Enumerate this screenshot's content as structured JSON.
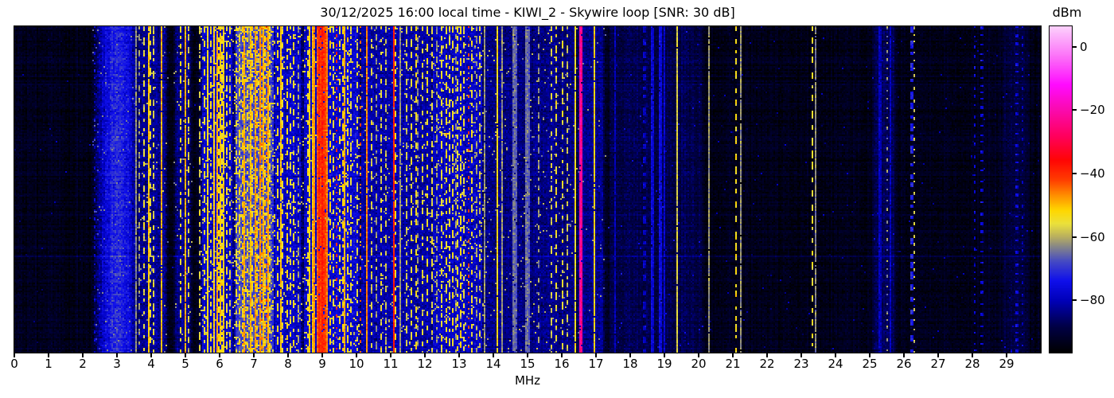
{
  "chart_data": {
    "type": "heatmap",
    "subtype": "radio-spectrum-waterfall",
    "title": "30/12/2025 16:00 local time - KIWI_2 - Skywire loop [SNR: 30 dB]",
    "xlabel": "MHz",
    "x_range_mhz": [
      0,
      30
    ],
    "x_ticks": [
      0,
      1,
      2,
      3,
      4,
      5,
      6,
      7,
      8,
      9,
      10,
      11,
      12,
      13,
      14,
      15,
      16,
      17,
      18,
      19,
      20,
      21,
      22,
      23,
      24,
      25,
      26,
      27,
      28,
      29
    ],
    "grid": false,
    "colorbar": {
      "label": "dBm",
      "vmax": 6.5,
      "vmin": -96.5,
      "tick_values": [
        0,
        -20,
        -40,
        -60,
        -80
      ],
      "tick_labels": [
        "0",
        "−20",
        "−40",
        "−60",
        "−80"
      ],
      "colormap_stops": [
        [
          0.0,
          "#000000"
        ],
        [
          0.08,
          "#000046"
        ],
        [
          0.16,
          "#0000b9"
        ],
        [
          0.22,
          "#0f0feb"
        ],
        [
          0.28,
          "#464bc3"
        ],
        [
          0.325,
          "#878787"
        ],
        [
          0.355,
          "#b9af5f"
        ],
        [
          0.395,
          "#ebe13c"
        ],
        [
          0.435,
          "#ffd700"
        ],
        [
          0.48,
          "#ff9100"
        ],
        [
          0.53,
          "#ff3c00"
        ],
        [
          0.59,
          "#ff0505"
        ],
        [
          0.665,
          "#ff005f"
        ],
        [
          0.745,
          "#fa0aaf"
        ],
        [
          0.82,
          "#ff0aff"
        ],
        [
          0.9,
          "#fc69f8"
        ],
        [
          1.0,
          "#fcd2fc"
        ]
      ]
    },
    "noise_floor_dbm": -93.5,
    "noise_sigma_db": 2.2,
    "artifact_rows": [
      {
        "y_frac": 0.707,
        "boost_db": 5
      },
      {
        "y_frac": 0.175,
        "boost_db": 2.5
      }
    ],
    "activity_bands": [
      {
        "f1": 2.4,
        "f2": 3.6,
        "level": -72,
        "sigma": 4.5,
        "speckle_p": 0.02,
        "speckle_lo": -70,
        "speckle_hi": -62,
        "shape": "gauss"
      },
      {
        "f1": 3.6,
        "f2": 4.45,
        "level": -83,
        "sigma": 4.0,
        "speckle_p": 0.02,
        "speckle_lo": -66,
        "speckle_hi": -58,
        "shape": "flat"
      },
      {
        "f1": 4.7,
        "f2": 5.15,
        "level": -84,
        "sigma": 4.0,
        "speckle_p": 0.02,
        "speckle_lo": -66,
        "speckle_hi": -58,
        "shape": "flat"
      },
      {
        "f1": 5.45,
        "f2": 6.4,
        "level": -78,
        "sigma": 4.5,
        "speckle_p": 0.07,
        "speckle_lo": -63,
        "speckle_hi": -53,
        "shape": "flat"
      },
      {
        "f1": 6.45,
        "f2": 7.6,
        "level": -68,
        "sigma": 5.0,
        "speckle_p": 0.16,
        "speckle_lo": -61,
        "speckle_hi": -51,
        "shape": "flat"
      },
      {
        "f1": 7.6,
        "f2": 8.4,
        "level": -78,
        "sigma": 4.5,
        "speckle_p": 0.05,
        "speckle_lo": -62,
        "speckle_hi": -54,
        "shape": "flat"
      },
      {
        "f1": 8.45,
        "f2": 10.1,
        "level": -77,
        "sigma": 4.5,
        "speckle_p": 0.06,
        "speckle_lo": -62,
        "speckle_hi": -52,
        "shape": "flat"
      },
      {
        "f1": 10.1,
        "f2": 12.2,
        "level": -81,
        "sigma": 4.0,
        "speckle_p": 0.03,
        "speckle_lo": -64,
        "speckle_hi": -56,
        "shape": "flat"
      },
      {
        "f1": 12.2,
        "f2": 13.7,
        "level": -79,
        "sigma": 4.5,
        "speckle_p": 0.06,
        "speckle_lo": -63,
        "speckle_hi": -55,
        "shape": "flat"
      },
      {
        "f1": 13.7,
        "f2": 16.45,
        "level": -84,
        "sigma": 3.5,
        "speckle_p": 0.025,
        "speckle_lo": -66,
        "speckle_hi": -58,
        "shape": "flat"
      },
      {
        "f1": 16.45,
        "f2": 17.25,
        "level": -83,
        "sigma": 3.5,
        "speckle_p": 0.01,
        "speckle_lo": -68,
        "speckle_hi": -60,
        "shape": "flat"
      },
      {
        "f1": 17.4,
        "f2": 20.1,
        "level": -88,
        "sigma": 2.8,
        "speckle_p": 0.004,
        "speckle_lo": -80,
        "speckle_hi": -72,
        "shape": "flat"
      },
      {
        "f1": 25.1,
        "f2": 25.75,
        "level": -87,
        "sigma": 2.8,
        "speckle_p": 0.003,
        "speckle_lo": -80,
        "speckle_hi": -74,
        "shape": "flat"
      },
      {
        "f1": 28.9,
        "f2": 29.6,
        "level": -89,
        "sigma": 2.5,
        "speckle_p": 0.003,
        "speckle_lo": -80,
        "speckle_hi": -75,
        "shape": "flat"
      }
    ],
    "carriers": [
      [
        2.37,
        -77,
        "t"
      ],
      [
        3.55,
        -63,
        "s"
      ],
      [
        3.67,
        -62,
        "d"
      ],
      [
        3.8,
        -56,
        "d"
      ],
      [
        3.91,
        -51,
        "s"
      ],
      [
        3.98,
        -55,
        "d"
      ],
      [
        4.06,
        -57,
        "d"
      ],
      [
        4.28,
        -49,
        "s"
      ],
      [
        4.86,
        -54,
        "d"
      ],
      [
        4.98,
        -49,
        "s"
      ],
      [
        5.07,
        -57,
        "d"
      ],
      [
        5.41,
        -57,
        "d"
      ],
      [
        5.56,
        -55,
        "d"
      ],
      [
        5.66,
        -53,
        "s"
      ],
      [
        5.76,
        -54,
        "d"
      ],
      [
        5.86,
        -52,
        "s"
      ],
      [
        5.91,
        -49,
        "s"
      ],
      [
        5.97,
        -53,
        "d"
      ],
      [
        6.03,
        -51,
        "s"
      ],
      [
        6.08,
        -54,
        "d"
      ],
      [
        6.13,
        -52,
        "s"
      ],
      [
        6.19,
        -55,
        "d"
      ],
      [
        6.31,
        -57,
        "d"
      ],
      [
        6.5,
        -55,
        "d"
      ],
      [
        6.58,
        -53,
        "d"
      ],
      [
        6.66,
        -51,
        "d"
      ],
      [
        6.74,
        -49,
        "s"
      ],
      [
        6.81,
        -52,
        "d"
      ],
      [
        6.89,
        -50,
        "s"
      ],
      [
        6.96,
        -53,
        "d"
      ],
      [
        7.03,
        -48,
        "s"
      ],
      [
        7.1,
        -51,
        "d"
      ],
      [
        7.18,
        -47,
        "s"
      ],
      [
        7.22,
        -46,
        "t"
      ],
      [
        7.26,
        -50,
        "s"
      ],
      [
        7.33,
        -52,
        "d"
      ],
      [
        7.36,
        -45,
        "t"
      ],
      [
        7.4,
        -49,
        "s"
      ],
      [
        7.48,
        -54,
        "d"
      ],
      [
        7.71,
        -54,
        "d"
      ],
      [
        7.79,
        -51,
        "s"
      ],
      [
        7.86,
        -55,
        "d"
      ],
      [
        7.96,
        -53,
        "d"
      ],
      [
        8.06,
        -56,
        "d"
      ],
      [
        8.14,
        -54,
        "d"
      ],
      [
        8.31,
        -61,
        "d"
      ],
      [
        8.56,
        -54,
        "d"
      ],
      [
        8.63,
        -52,
        "s"
      ],
      [
        8.71,
        -50,
        "s"
      ],
      [
        8.79,
        -47,
        "s"
      ],
      [
        8.87,
        -43,
        "s"
      ],
      [
        8.94,
        -39,
        "s",
        2
      ],
      [
        9.02,
        -38,
        "s",
        2
      ],
      [
        9.09,
        -42,
        "s"
      ],
      [
        9.16,
        -46,
        "s"
      ],
      [
        9.23,
        -52,
        "d"
      ],
      [
        9.31,
        -56,
        "d"
      ],
      [
        9.41,
        -39,
        "t"
      ],
      [
        9.53,
        -55,
        "d"
      ],
      [
        9.6,
        -52,
        "d"
      ],
      [
        9.66,
        -49,
        "s"
      ],
      [
        9.76,
        -54,
        "d"
      ],
      [
        9.86,
        -56,
        "d"
      ],
      [
        10.01,
        -57,
        "d"
      ],
      [
        10.11,
        -44,
        "t"
      ],
      [
        10.31,
        -46,
        "s"
      ],
      [
        10.46,
        -57,
        "d"
      ],
      [
        10.56,
        -62,
        "d"
      ],
      [
        10.71,
        -56,
        "d"
      ],
      [
        10.86,
        -58,
        "d"
      ],
      [
        11.07,
        -38,
        "s"
      ],
      [
        11.16,
        -55,
        "d"
      ],
      [
        11.26,
        -62,
        "s"
      ],
      [
        11.46,
        -58,
        "d"
      ],
      [
        11.61,
        -55,
        "d"
      ],
      [
        11.73,
        -53,
        "d"
      ],
      [
        11.81,
        -62,
        "d"
      ],
      [
        11.91,
        -56,
        "d"
      ],
      [
        12.06,
        -54,
        "d"
      ],
      [
        12.21,
        -56,
        "d"
      ],
      [
        12.36,
        -62,
        "d"
      ],
      [
        12.51,
        -55,
        "d"
      ],
      [
        12.63,
        -53,
        "d"
      ],
      [
        12.71,
        -56,
        "d"
      ],
      [
        12.81,
        -54,
        "d"
      ],
      [
        12.89,
        -62,
        "d"
      ],
      [
        12.96,
        -55,
        "d"
      ],
      [
        13.06,
        -53,
        "d"
      ],
      [
        13.16,
        -56,
        "d"
      ],
      [
        13.29,
        -42,
        "t"
      ],
      [
        13.36,
        -55,
        "d"
      ],
      [
        13.49,
        -62,
        "d"
      ],
      [
        13.61,
        -58,
        "d"
      ],
      [
        13.76,
        -62,
        "s"
      ],
      [
        14.1,
        -53,
        "s"
      ],
      [
        14.26,
        -62,
        "s"
      ],
      [
        14.62,
        -65,
        "s",
        3
      ],
      [
        15.02,
        -65,
        "s",
        3
      ],
      [
        15.31,
        -62,
        "d"
      ],
      [
        15.71,
        -57,
        "d"
      ],
      [
        15.86,
        -55,
        "d"
      ],
      [
        16.01,
        -56,
        "d"
      ],
      [
        16.16,
        -58,
        "d"
      ],
      [
        16.38,
        -54,
        "s"
      ],
      [
        16.56,
        -22,
        "s",
        2
      ],
      [
        16.96,
        -52,
        "s"
      ],
      [
        17.56,
        -80,
        "s"
      ],
      [
        18.42,
        -78,
        "d",
        2
      ],
      [
        18.67,
        -76,
        "s",
        2
      ],
      [
        18.88,
        -75,
        "s",
        2
      ],
      [
        19.02,
        -78,
        "s"
      ],
      [
        19.37,
        -57,
        "s"
      ],
      [
        20.32,
        -62,
        "s"
      ],
      [
        21.09,
        -53,
        "d"
      ],
      [
        21.21,
        -62,
        "s"
      ],
      [
        23.33,
        -55,
        "d"
      ],
      [
        23.43,
        -63,
        "s"
      ],
      [
        25.31,
        -79,
        "s",
        2
      ],
      [
        25.51,
        -62,
        "t"
      ],
      [
        25.62,
        -79,
        "s"
      ],
      [
        26.21,
        -71,
        "d",
        2
      ],
      [
        26.32,
        -58,
        "t"
      ],
      [
        28.06,
        -77,
        "t"
      ],
      [
        28.26,
        -75,
        "t",
        2
      ],
      [
        29.32,
        -75,
        "t",
        2
      ],
      [
        29.47,
        -79,
        "t"
      ]
    ]
  }
}
